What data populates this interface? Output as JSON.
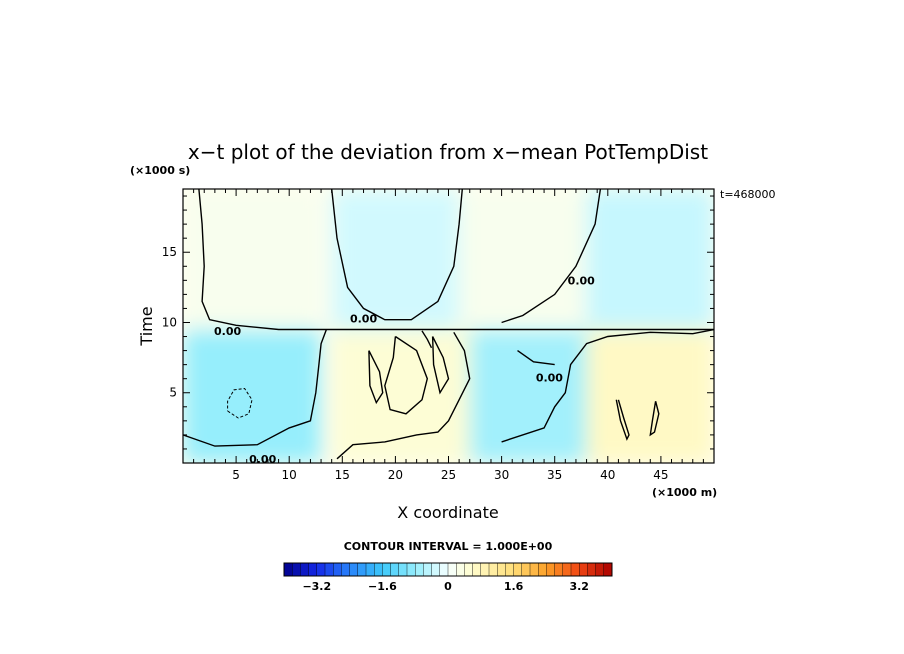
{
  "chart_data": {
    "type": "heatmap",
    "title": "x−t plot of the deviation from x−mean PotTempDist",
    "xlabel": "X coordinate",
    "ylabel": "Time",
    "x_unit": "(×1000 m)",
    "y_unit": "(×1000 s)",
    "annotation": "t=468000",
    "xlim": [
      0,
      50
    ],
    "ylim": [
      0,
      19.5
    ],
    "x_ticks": [
      5,
      10,
      15,
      20,
      25,
      30,
      35,
      40,
      45
    ],
    "y_ticks": [
      5,
      10,
      15
    ],
    "contour_interval_label": "CONTOUR INTERVAL = 1.000E+00",
    "contour_label": "0.00",
    "colorbar_ticks": [
      "−3.2",
      "−1.6",
      "0",
      "1.6",
      "3.2"
    ],
    "colorbar_range": [
      -4.0,
      4.0
    ],
    "colorbar_step": 0.2,
    "regions": [
      {
        "name": "upper-left-warm",
        "x": [
          0,
          13
        ],
        "y": [
          9.5,
          19.5
        ],
        "value": 0.2
      },
      {
        "name": "upper-center-cool",
        "x": [
          14,
          26
        ],
        "y": [
          9.5,
          19.5
        ],
        "value": -0.3
      },
      {
        "name": "upper-right-warm",
        "x": [
          26,
          38
        ],
        "y": [
          9.5,
          19.5
        ],
        "value": 0.2
      },
      {
        "name": "upper-far-right-cool",
        "x": [
          38,
          50
        ],
        "y": [
          9.5,
          19.5
        ],
        "value": -0.4
      },
      {
        "name": "lower-left-cool",
        "x": [
          0,
          13
        ],
        "y": [
          0,
          9.5
        ],
        "value": -0.8
      },
      {
        "name": "lower-center-warm",
        "x": [
          14,
          27
        ],
        "y": [
          0,
          9.5
        ],
        "value": 0.5
      },
      {
        "name": "lower-mid-cool",
        "x": [
          27,
          38
        ],
        "y": [
          0,
          9.5
        ],
        "value": -0.7
      },
      {
        "name": "lower-right-warm",
        "x": [
          38,
          50
        ],
        "y": [
          0,
          9.5
        ],
        "value": 0.7
      }
    ],
    "contour_paths": [
      [
        [
          1.5,
          19.5
        ],
        [
          1.8,
          17
        ],
        [
          2.0,
          14
        ],
        [
          1.8,
          11.5
        ],
        [
          2.5,
          10.2
        ],
        [
          5,
          9.8
        ],
        [
          9,
          9.5
        ],
        [
          20,
          9.5
        ],
        [
          30,
          9.5
        ],
        [
          41,
          9.5
        ],
        [
          50,
          9.5
        ]
      ],
      [
        [
          14,
          19.5
        ],
        [
          14.5,
          16
        ],
        [
          15.5,
          12.5
        ],
        [
          17,
          11
        ],
        [
          19,
          10.2
        ],
        [
          21.5,
          10.2
        ],
        [
          24,
          11.5
        ],
        [
          25.5,
          14
        ],
        [
          26,
          17
        ],
        [
          26.3,
          19.5
        ]
      ],
      [
        [
          39.3,
          19.5
        ],
        [
          38.8,
          17
        ],
        [
          37,
          14
        ],
        [
          35,
          12
        ],
        [
          32,
          10.5
        ],
        [
          30,
          10
        ]
      ],
      [
        [
          0,
          2
        ],
        [
          3,
          1.2
        ],
        [
          7,
          1.3
        ],
        [
          10,
          2.5
        ],
        [
          12,
          3
        ],
        [
          12.5,
          5
        ],
        [
          12.8,
          7
        ],
        [
          13,
          8.5
        ],
        [
          13.5,
          9.5
        ]
      ],
      [
        [
          14.5,
          0.3
        ],
        [
          16,
          1.3
        ],
        [
          19,
          1.5
        ],
        [
          22,
          2
        ],
        [
          24,
          2.2
        ],
        [
          25,
          3
        ],
        [
          26,
          4.5
        ],
        [
          27,
          6
        ],
        [
          26.5,
          8
        ],
        [
          25.5,
          9.3
        ]
      ],
      [
        [
          50,
          9.5
        ],
        [
          48,
          9.2
        ],
        [
          44,
          9.3
        ],
        [
          40,
          9
        ],
        [
          38,
          8.5
        ],
        [
          36.5,
          7
        ],
        [
          36,
          5
        ],
        [
          35,
          4
        ],
        [
          34,
          2.5
        ],
        [
          30,
          1.5
        ]
      ],
      [
        [
          31.5,
          8
        ],
        [
          33,
          7.2
        ],
        [
          35,
          7
        ]
      ],
      [
        [
          20,
          9
        ],
        [
          22,
          8
        ],
        [
          23,
          6
        ],
        [
          22.5,
          4.5
        ],
        [
          21,
          3.5
        ],
        [
          19.5,
          3.8
        ],
        [
          19,
          5.5
        ],
        [
          19.8,
          7.5
        ],
        [
          20,
          9
        ]
      ],
      [
        [
          17.5,
          8
        ],
        [
          18.5,
          6.5
        ],
        [
          18.8,
          5
        ],
        [
          18.2,
          4.3
        ],
        [
          17.6,
          5.5
        ],
        [
          17.5,
          8
        ]
      ],
      [
        [
          23.5,
          9
        ],
        [
          24.5,
          7.5
        ],
        [
          25,
          6
        ],
        [
          24.2,
          5
        ],
        [
          23.6,
          7
        ],
        [
          23.5,
          9
        ]
      ],
      [
        [
          22.5,
          9.4
        ],
        [
          23,
          8.8
        ],
        [
          23.4,
          8.2
        ]
      ],
      [
        [
          41,
          4.5
        ],
        [
          41.5,
          3.2
        ],
        [
          42,
          2
        ],
        [
          41.8,
          1.7
        ],
        [
          41.2,
          3
        ],
        [
          40.8,
          4.5
        ]
      ],
      [
        [
          44.5,
          4.4
        ],
        [
          44.2,
          3
        ],
        [
          44,
          2
        ],
        [
          44.4,
          2.2
        ],
        [
          44.8,
          3.5
        ],
        [
          44.5,
          4.4
        ]
      ]
    ],
    "dashed_paths": [
      [
        [
          4.2,
          3.7
        ],
        [
          5.2,
          3.2
        ],
        [
          6.2,
          3.5
        ],
        [
          6.5,
          4.5
        ],
        [
          5.8,
          5.3
        ],
        [
          4.8,
          5.2
        ],
        [
          4.2,
          4.4
        ],
        [
          4.2,
          3.7
        ]
      ]
    ],
    "contour_labels_at": [
      {
        "x": 4.2,
        "y": 9.4
      },
      {
        "x": 17.0,
        "y": 10.3
      },
      {
        "x": 37.5,
        "y": 13.0
      },
      {
        "x": 34.5,
        "y": 6.1
      },
      {
        "x": 7.5,
        "y": 0.3
      }
    ]
  }
}
